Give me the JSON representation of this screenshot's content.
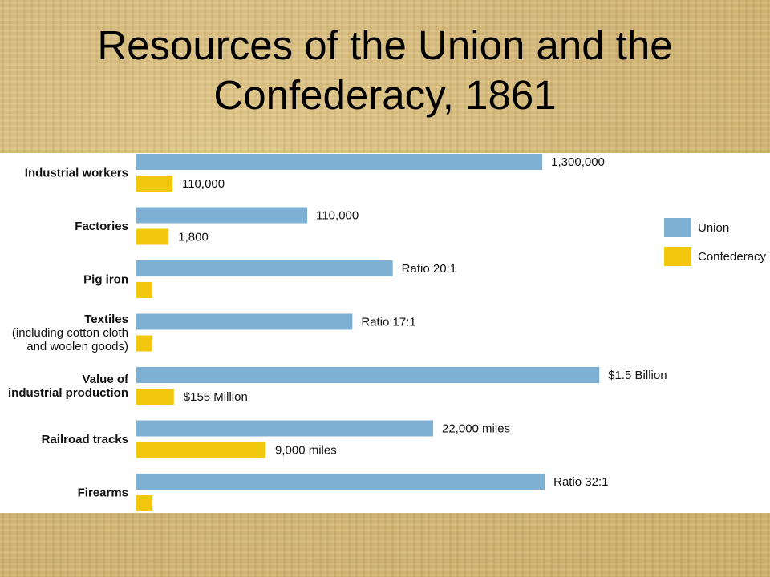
{
  "title": "Resources of the Union and the\nConfederacy, 1861",
  "chart_data": {
    "type": "bar",
    "orientation": "horizontal",
    "title": "Resources of the Union and the Confederacy, 1861",
    "categories": [
      {
        "lines": [
          "Industrial workers"
        ],
        "union": 1300000,
        "confederacy": 110000,
        "union_label": "1,300,000",
        "confederacy_label": "110,000"
      },
      {
        "lines": [
          "Factories"
        ],
        "union": 110000,
        "confederacy": 1800,
        "union_label": "110,000",
        "confederacy_label": "1,800"
      },
      {
        "lines": [
          "Pig iron"
        ],
        "union": 20,
        "confederacy": 1,
        "union_label": "Ratio 20:1",
        "confederacy_label": ""
      },
      {
        "lines": [
          "Textiles",
          "(including cotton cloth",
          "and woolen goods)"
        ],
        "union": 17,
        "confederacy": 1,
        "union_label": "Ratio 17:1",
        "confederacy_label": ""
      },
      {
        "lines": [
          "Value of",
          "industrial production"
        ],
        "union": 1500000000,
        "confederacy": 155000000,
        "union_label": "$1.5 Billion",
        "confederacy_label": "$155 Million"
      },
      {
        "lines": [
          "Railroad tracks"
        ],
        "union": 22000,
        "confederacy": 9000,
        "union_label": "22,000 miles",
        "confederacy_label": "9,000 miles"
      },
      {
        "lines": [
          "Firearms"
        ],
        "union": 32,
        "confederacy": 1,
        "union_label": "Ratio 32:1",
        "confederacy_label": ""
      }
    ],
    "union_bar_fraction": [
      0.855,
      0.36,
      0.54,
      0.455,
      0.975,
      0.625,
      0.86
    ],
    "confederacy_bar_fraction": [
      0.076,
      0.068,
      0.034,
      0.034,
      0.079,
      0.272,
      0.034
    ],
    "series": [
      {
        "name": "Union",
        "color": "#7eb0d4"
      },
      {
        "name": "Confederacy",
        "color": "#f2c80f"
      }
    ],
    "legend": "right",
    "grid": false
  }
}
